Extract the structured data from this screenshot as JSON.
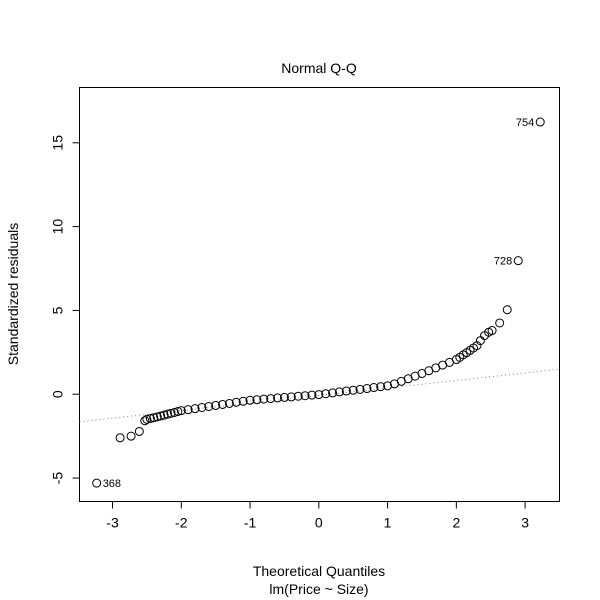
{
  "chart_data": {
    "type": "scatter",
    "title": "Normal Q-Q",
    "xlabel": "Theoretical Quantiles",
    "subtitle": "lm(Price ~ Size)",
    "ylabel": "Standardized residuals",
    "xlim": [
      -3.48,
      3.5
    ],
    "ylim": [
      -6.4,
      18.3
    ],
    "xticks": [
      -3,
      -2,
      -1,
      0,
      1,
      2,
      3
    ],
    "xtick_labels": [
      "-3",
      "-2",
      "-1",
      "0",
      "1",
      "2",
      "3"
    ],
    "yticks": [
      -5,
      0,
      5,
      10,
      15
    ],
    "ytick_labels": [
      "-5",
      "0",
      "5",
      "10",
      "15"
    ],
    "grid": false,
    "reference_line": {
      "intercept": -0.08,
      "slope": 0.45,
      "style": "dotted",
      "color": "#808080"
    },
    "points": [
      [
        -3.23,
        -5.3
      ],
      [
        -2.89,
        -2.6
      ],
      [
        -2.73,
        -2.5
      ],
      [
        -2.61,
        -2.22
      ],
      [
        -2.53,
        -1.58
      ],
      [
        -2.5,
        -1.5
      ],
      [
        -2.45,
        -1.45
      ],
      [
        -2.4,
        -1.4
      ],
      [
        -2.35,
        -1.35
      ],
      [
        -2.3,
        -1.3
      ],
      [
        -2.25,
        -1.25
      ],
      [
        -2.2,
        -1.19
      ],
      [
        -2.15,
        -1.14
      ],
      [
        -2.1,
        -1.09
      ],
      [
        -2.05,
        -1.03
      ],
      [
        -2.0,
        -0.98
      ],
      [
        -1.9,
        -0.92
      ],
      [
        -1.8,
        -0.86
      ],
      [
        -1.7,
        -0.79
      ],
      [
        -1.6,
        -0.73
      ],
      [
        -1.5,
        -0.67
      ],
      [
        -1.4,
        -0.61
      ],
      [
        -1.3,
        -0.55
      ],
      [
        -1.2,
        -0.48
      ],
      [
        -1.1,
        -0.42
      ],
      [
        -1.0,
        -0.36
      ],
      [
        -0.9,
        -0.33
      ],
      [
        -0.8,
        -0.29
      ],
      [
        -0.7,
        -0.26
      ],
      [
        -0.6,
        -0.22
      ],
      [
        -0.5,
        -0.19
      ],
      [
        -0.4,
        -0.16
      ],
      [
        -0.3,
        -0.12
      ],
      [
        -0.2,
        -0.09
      ],
      [
        -0.1,
        -0.05
      ],
      [
        0.0,
        -0.02
      ],
      [
        0.1,
        0.03
      ],
      [
        0.2,
        0.08
      ],
      [
        0.3,
        0.14
      ],
      [
        0.4,
        0.19
      ],
      [
        0.5,
        0.24
      ],
      [
        0.6,
        0.29
      ],
      [
        0.7,
        0.34
      ],
      [
        0.8,
        0.4
      ],
      [
        0.9,
        0.45
      ],
      [
        1.0,
        0.5
      ],
      [
        1.1,
        0.62
      ],
      [
        1.2,
        0.77
      ],
      [
        1.3,
        0.92
      ],
      [
        1.4,
        1.08
      ],
      [
        1.5,
        1.24
      ],
      [
        1.6,
        1.4
      ],
      [
        1.7,
        1.57
      ],
      [
        1.8,
        1.74
      ],
      [
        1.9,
        1.9
      ],
      [
        2.0,
        2.07
      ],
      [
        2.05,
        2.2
      ],
      [
        2.1,
        2.35
      ],
      [
        2.15,
        2.48
      ],
      [
        2.2,
        2.62
      ],
      [
        2.25,
        2.76
      ],
      [
        2.3,
        2.9
      ],
      [
        2.35,
        3.2
      ],
      [
        2.41,
        3.5
      ],
      [
        2.47,
        3.7
      ],
      [
        2.52,
        3.8
      ],
      [
        2.63,
        4.25
      ],
      [
        2.74,
        5.04
      ],
      [
        2.9,
        7.97
      ],
      [
        3.22,
        16.24
      ]
    ],
    "annotations": [
      {
        "label": "754",
        "x": 3.22,
        "y": 16.24,
        "side": "left"
      },
      {
        "label": "728",
        "x": 2.9,
        "y": 7.97,
        "side": "left"
      },
      {
        "label": "368",
        "x": -3.23,
        "y": -5.3,
        "side": "right"
      }
    ]
  }
}
